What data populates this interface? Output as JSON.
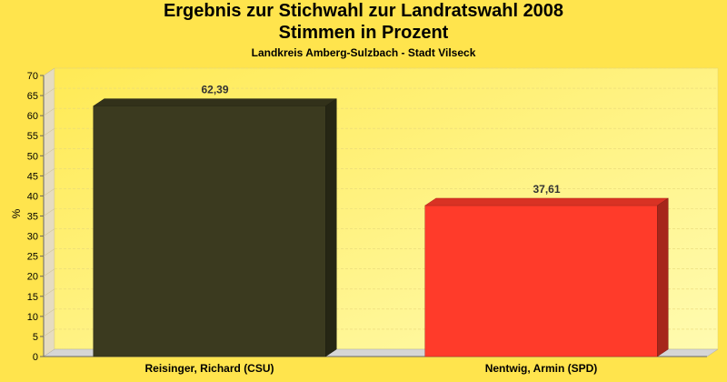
{
  "chart_data": {
    "type": "bar",
    "title_lines": [
      "Ergebnis zur Stichwahl zur Landratswahl 2008",
      "Stimmen in Prozent"
    ],
    "subtitle": "Landkreis Amberg-Sulzbach - Stadt Vilseck",
    "xlabel": "",
    "ylabel": "%",
    "ylim": [
      0,
      70
    ],
    "yticks": [
      0,
      5,
      10,
      15,
      20,
      25,
      30,
      35,
      40,
      45,
      50,
      55,
      60,
      65,
      70
    ],
    "categories": [
      "Reisinger, Richard (CSU)",
      "Nentwig, Armin (SPD)"
    ],
    "values": [
      62.39,
      37.61
    ],
    "value_labels": [
      "62,39",
      "37,61"
    ],
    "colors": [
      "#3b3a1f",
      "#ff3b2a"
    ],
    "grid": true,
    "legend": "none"
  }
}
